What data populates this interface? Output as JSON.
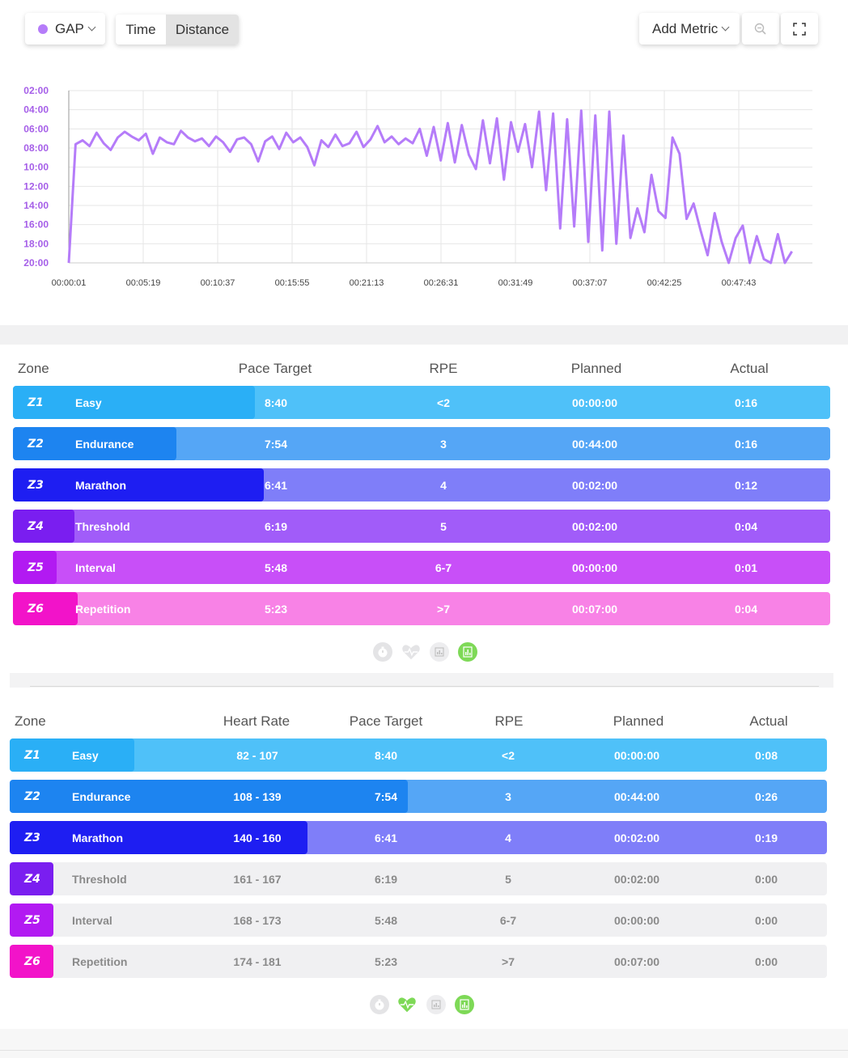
{
  "toolbar": {
    "metric_label": "GAP",
    "metric_color": "#b57cf9",
    "toggle_time": "Time",
    "toggle_distance": "Distance",
    "add_metric": "Add Metric",
    "zoom_icon": "zoom-out-icon",
    "fullscreen_icon": "fullscreen-icon"
  },
  "chart_data": {
    "type": "line",
    "series": [
      {
        "name": "GAP",
        "color": "#b57cf9"
      }
    ],
    "y_ticks": [
      "02:00",
      "04:00",
      "06:00",
      "08:00",
      "10:00",
      "12:00",
      "14:00",
      "16:00",
      "18:00",
      "20:00"
    ],
    "y_range_min_per_km": [
      2,
      20
    ],
    "y_inverted": true,
    "x_ticks": [
      "00:00:01",
      "00:05:19",
      "00:10:37",
      "00:15:55",
      "00:21:13",
      "00:26:31",
      "00:31:49",
      "00:37:07",
      "00:42:25",
      "00:47:43"
    ],
    "grid": true,
    "x_seconds": [
      1,
      30,
      60,
      90,
      120,
      150,
      180,
      210,
      240,
      270,
      300,
      330,
      360,
      390,
      420,
      450,
      480,
      510,
      540,
      570,
      600,
      630,
      660,
      690,
      720,
      750,
      780,
      810,
      840,
      870,
      900,
      930,
      960,
      990,
      1020,
      1050,
      1080,
      1110,
      1140,
      1170,
      1200,
      1230,
      1260,
      1290,
      1320,
      1350,
      1380,
      1410,
      1440,
      1470,
      1500,
      1530,
      1560,
      1590,
      1620,
      1650,
      1680,
      1710,
      1740,
      1770,
      1800,
      1830,
      1860,
      1890,
      1920,
      1950,
      1980,
      2010,
      2040,
      2070,
      2100,
      2130,
      2160,
      2190,
      2220,
      2250,
      2280,
      2310,
      2340,
      2370,
      2400,
      2430,
      2460,
      2490,
      2520,
      2550,
      2580,
      2610,
      2640,
      2670,
      2700,
      2730,
      2760,
      2790,
      2820,
      2850,
      2880,
      2910,
      2940,
      2970,
      3000,
      3030,
      3060,
      3090,
      3120,
      3150,
      3180,
      3210
    ],
    "y_pace_min": [
      20.0,
      7.6,
      7.2,
      7.8,
      6.4,
      7.5,
      8.2,
      6.9,
      6.3,
      6.8,
      7.2,
      6.5,
      8.6,
      6.9,
      7.4,
      7.6,
      6.2,
      6.9,
      7.3,
      7.0,
      7.8,
      6.8,
      7.4,
      8.4,
      7.1,
      6.9,
      7.6,
      9.4,
      7.3,
      6.8,
      8.1,
      6.4,
      7.4,
      6.9,
      7.9,
      9.8,
      7.2,
      7.9,
      6.6,
      7.8,
      7.5,
      6.3,
      7.9,
      7.1,
      5.7,
      7.4,
      6.8,
      7.6,
      7.0,
      7.5,
      6.0,
      8.8,
      5.8,
      9.3,
      5.4,
      9.5,
      5.6,
      8.7,
      10.2,
      5.1,
      9.6,
      4.9,
      11.3,
      5.3,
      8.4,
      5.5,
      10.0,
      4.2,
      12.4,
      4.4,
      16.4,
      5.0,
      16.2,
      4.1,
      17.8,
      4.6,
      18.7,
      4.2,
      18.0,
      6.7,
      17.4,
      14.3,
      16.8,
      10.8,
      14.6,
      15.3,
      6.9,
      8.6,
      15.4,
      13.8,
      16.6,
      19.2,
      14.8,
      17.8,
      20.0,
      17.4,
      16.1,
      20.0,
      17.2,
      19.6,
      20.0,
      17.0,
      20.0,
      18.8
    ]
  },
  "table1": {
    "headers": {
      "zone": "Zone",
      "pace": "Pace Target",
      "rpe": "RPE",
      "planned": "Planned",
      "actual": "Actual"
    },
    "rows": [
      {
        "code": "Z1",
        "name": "Easy",
        "pace": "8:40",
        "rpe": "<2",
        "planned": "00:00:00",
        "actual": "0:16",
        "color": "#2aaff6",
        "bg": "#4fc1f9",
        "fill_fraction": 0.296
      },
      {
        "code": "Z2",
        "name": "Endurance",
        "pace": "7:54",
        "rpe": "3",
        "planned": "00:44:00",
        "actual": "0:16",
        "color": "#1d84f0",
        "bg": "#55a6f6",
        "fill_fraction": 0.2
      },
      {
        "code": "Z3",
        "name": "Marathon",
        "pace": "6:41",
        "rpe": "4",
        "planned": "00:02:00",
        "actual": "0:12",
        "color": "#1e1ef2",
        "bg": "#7f7ef9",
        "fill_fraction": 0.307
      },
      {
        "code": "Z4",
        "name": "Threshold",
        "pace": "6:19",
        "rpe": "5",
        "planned": "00:02:00",
        "actual": "0:04",
        "color": "#7a1ef0",
        "bg": "#a15cf9",
        "fill_fraction": 0.075
      },
      {
        "code": "Z5",
        "name": "Interval",
        "pace": "5:48",
        "rpe": "6-7",
        "planned": "00:00:00",
        "actual": "0:01",
        "color": "#b21af2",
        "bg": "#c84ff8",
        "fill_fraction": 0.053
      },
      {
        "code": "Z6",
        "name": "Repetition",
        "pace": "5:23",
        "rpe": ">7",
        "planned": "00:07:00",
        "actual": "0:04",
        "color": "#f213c9",
        "bg": "#f882e6",
        "fill_fraction": 0.079
      }
    ],
    "icons": [
      "stopwatch-icon",
      "heart-rate-icon",
      "bar-chart-icon",
      "report-icon"
    ]
  },
  "table2": {
    "headers": {
      "zone": "Zone",
      "hr": "Heart Rate",
      "pace": "Pace Target",
      "rpe": "RPE",
      "planned": "Planned",
      "actual": "Actual"
    },
    "rows": [
      {
        "code": "Z1",
        "name": "Easy",
        "hr": "82 - 107",
        "pace": "8:40",
        "rpe": "<2",
        "planned": "00:00:00",
        "actual": "0:08",
        "color": "#2aaff6",
        "bg": "#4fc1f9",
        "fill_fraction": 0.152
      },
      {
        "code": "Z2",
        "name": "Endurance",
        "hr": "108 - 139",
        "pace": "7:54",
        "rpe": "3",
        "planned": "00:44:00",
        "actual": "0:26",
        "color": "#1d84f0",
        "bg": "#55a6f6",
        "fill_fraction": 0.487
      },
      {
        "code": "Z3",
        "name": "Marathon",
        "hr": "140 - 160",
        "pace": "6:41",
        "rpe": "4",
        "planned": "00:02:00",
        "actual": "0:19",
        "color": "#1e1ef2",
        "bg": "#7f7ef9",
        "fill_fraction": 0.364
      },
      {
        "code": "Z4",
        "name": "Threshold",
        "hr": "161 - 167",
        "pace": "6:19",
        "rpe": "5",
        "planned": "00:02:00",
        "actual": "0:00",
        "color": "#7a1ef0",
        "bg": "#f0f0f2",
        "fill_fraction": 0.053
      },
      {
        "code": "Z5",
        "name": "Interval",
        "hr": "168 - 173",
        "pace": "5:48",
        "rpe": "6-7",
        "planned": "00:00:00",
        "actual": "0:00",
        "color": "#b21af2",
        "bg": "#f0f0f2",
        "fill_fraction": 0.053
      },
      {
        "code": "Z6",
        "name": "Repetition",
        "hr": "174 - 181",
        "pace": "5:23",
        "rpe": ">7",
        "planned": "00:07:00",
        "actual": "0:00",
        "color": "#f213c9",
        "bg": "#f0f0f2",
        "fill_fraction": 0.053
      }
    ],
    "icons": [
      "stopwatch-icon",
      "heart-rate-icon",
      "bar-chart-icon",
      "report-icon"
    ]
  }
}
